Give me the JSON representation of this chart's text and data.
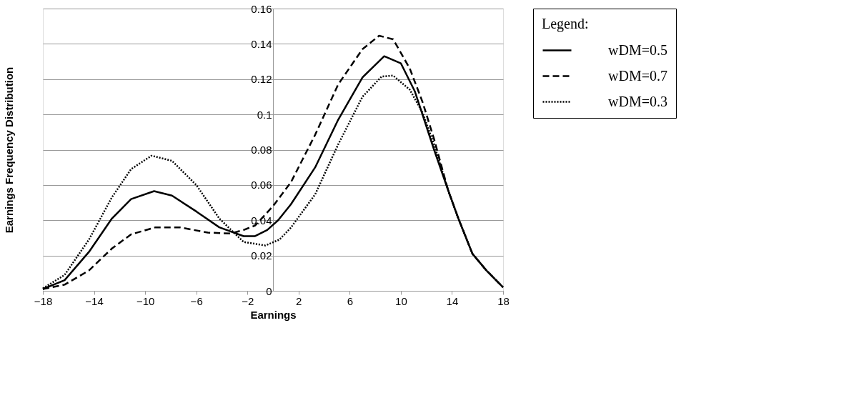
{
  "chart_data": {
    "type": "line",
    "xlabel": "Earnings",
    "ylabel": "Earnings Frequency Distribution",
    "legend_title": "Legend:",
    "xlim": [
      -18,
      18
    ],
    "xticks": [
      -18,
      -14,
      -10,
      -6,
      -2,
      2,
      6,
      10,
      14,
      18
    ],
    "ylim": [
      0,
      0.16
    ],
    "yticks": [
      0,
      0.02,
      0.04,
      0.06,
      0.08,
      0.1,
      0.12,
      0.14,
      0.16
    ],
    "grid": "y",
    "legend": "top right",
    "marker": "none",
    "series": [
      {
        "name": "wDM=0.5",
        "color": "#000000",
        "line_style": "solid",
        "x": [
          -18,
          -16.3,
          -14.4,
          -12.6,
          -11.1,
          -9.3,
          -7.9,
          -6.0,
          -4.2,
          -2.3,
          -1.4,
          -0.45,
          0.4,
          1.4,
          3.3,
          5.1,
          7.0,
          8.7,
          10.0,
          11.1,
          12.6,
          13.7,
          14.5,
          15.6,
          16.7,
          18
        ],
        "values": [
          0.001,
          0.006,
          0.022,
          0.041,
          0.052,
          0.0565,
          0.054,
          0.045,
          0.036,
          0.031,
          0.031,
          0.0345,
          0.04,
          0.049,
          0.07,
          0.097,
          0.121,
          0.133,
          0.129,
          0.113,
          0.08,
          0.057,
          0.041,
          0.021,
          0.0115,
          0.002
        ]
      },
      {
        "name": "wDM=0.7",
        "color": "#000000",
        "line_style": "dashed",
        "x": [
          -18,
          -16.3,
          -14.4,
          -12.6,
          -11.1,
          -9.2,
          -7.3,
          -5.1,
          -3.3,
          -2.3,
          -1.4,
          0,
          1.4,
          3.3,
          5.1,
          7.0,
          8.3,
          9.4,
          10.7,
          11.7,
          12.6,
          13.7,
          14.5,
          15.6,
          16.7,
          18
        ],
        "values": [
          0.001,
          0.0035,
          0.0115,
          0.024,
          0.032,
          0.036,
          0.036,
          0.033,
          0.0325,
          0.0345,
          0.037,
          0.048,
          0.0615,
          0.0885,
          0.117,
          0.137,
          0.1446,
          0.1426,
          0.126,
          0.107,
          0.086,
          0.057,
          0.041,
          0.021,
          0.0115,
          0.002
        ]
      },
      {
        "name": "wDM=0.3",
        "color": "#000000",
        "line_style": "dotted",
        "x": [
          -18,
          -16.3,
          -14.4,
          -12.6,
          -11.1,
          -9.5,
          -7.9,
          -6.0,
          -4.2,
          -2.3,
          -0.6,
          0.5,
          1.4,
          3.3,
          5.1,
          7.0,
          8.5,
          9.4,
          10.7,
          11.7,
          12.6,
          13.7,
          14.5,
          15.6,
          16.7,
          18
        ],
        "values": [
          0.0014,
          0.009,
          0.029,
          0.053,
          0.069,
          0.0766,
          0.0737,
          0.06,
          0.041,
          0.0277,
          0.0257,
          0.029,
          0.0358,
          0.0547,
          0.083,
          0.11,
          0.1215,
          0.122,
          0.114,
          0.101,
          0.083,
          0.057,
          0.041,
          0.021,
          0.0115,
          0.002
        ]
      }
    ]
  }
}
